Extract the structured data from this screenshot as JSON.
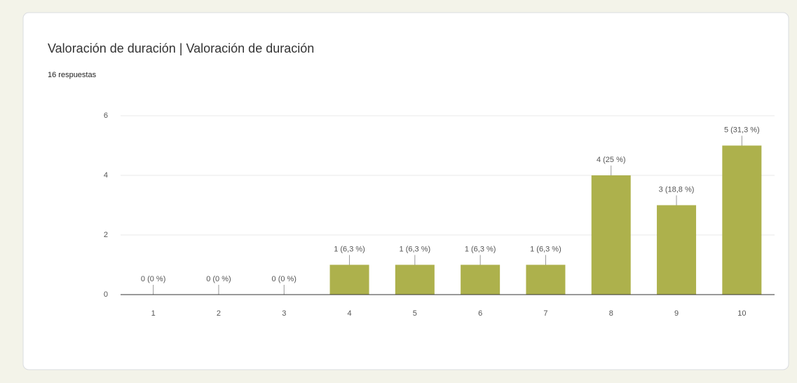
{
  "chart_data": {
    "type": "bar",
    "title": "Valoración de duración | Valoración de duración",
    "subtitle": "16 respuestas",
    "categories": [
      "1",
      "2",
      "3",
      "4",
      "5",
      "6",
      "7",
      "8",
      "9",
      "10"
    ],
    "values": [
      0,
      0,
      0,
      1,
      1,
      1,
      1,
      4,
      3,
      5
    ],
    "value_labels": [
      "0 (0 %)",
      "0 (0 %)",
      "0 (0 %)",
      "1 (6,3 %)",
      "1 (6,3 %)",
      "1 (6,3 %)",
      "1 (6,3 %)",
      "4 (25 %)",
      "3 (18,8 %)",
      "5 (31,3 %)"
    ],
    "color": "#adb14c",
    "ylim": [
      0,
      6
    ],
    "yticks": [
      0,
      2,
      4,
      6
    ],
    "grid": true
  }
}
